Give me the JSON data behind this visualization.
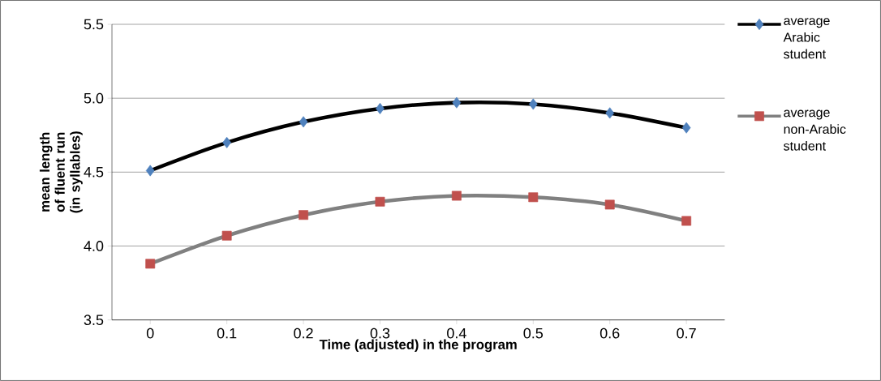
{
  "chart_data": {
    "type": "line",
    "xlabel": "Time (adjusted) in the program",
    "ylabel": "mean length of fluent run (in syllables)",
    "categories": [
      "0",
      "0.1",
      "0.2",
      "0.3",
      "0.4",
      "0.5",
      "0.6",
      "0.7"
    ],
    "series": [
      {
        "name": "average Arabic student",
        "color": "#000000",
        "colors": [
          "#4f81bd",
          "#4f81bd",
          "#4f81bd",
          "#4f81bd",
          "#4f81bd",
          "#4f81bd",
          "#4f81bd",
          "#4f81bd"
        ],
        "marker": "diamond",
        "values": [
          4.51,
          4.7,
          4.84,
          4.93,
          4.97,
          4.96,
          4.9,
          4.8
        ]
      },
      {
        "name": "average non-Arabic student",
        "color": "#808080",
        "colors": [
          "#c0504d",
          "#c0504d",
          "#c0504d",
          "#c0504d",
          "#c0504d",
          "#c0504d",
          "#c0504d",
          "#c0504d"
        ],
        "marker": "square",
        "values": [
          3.88,
          4.07,
          4.21,
          4.3,
          4.34,
          4.33,
          4.28,
          4.17
        ]
      }
    ],
    "ylim": [
      3.5,
      5.5
    ],
    "yticks": [
      {
        "value": 3.5,
        "label": "3.5"
      },
      {
        "value": 4.0,
        "label": "4.0"
      },
      {
        "value": 4.5,
        "label": "4.5"
      },
      {
        "value": 5.0,
        "label": "5.0"
      },
      {
        "value": 5.5,
        "label": "5.5"
      }
    ],
    "grid": "y",
    "legend": "top right"
  }
}
